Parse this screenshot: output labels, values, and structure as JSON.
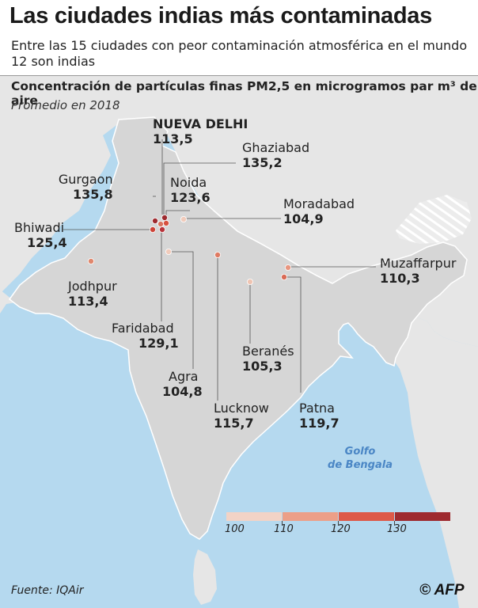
{
  "header": {
    "title": "Las ciudades indias más contaminadas",
    "subtitle": "Entre las 15 ciudades con peor contaminación atmosférica en el mundo 12 son indias"
  },
  "map": {
    "title": "Concentración de partículas finas PM2,5 en microgramos par m³ de aire",
    "subtitle": "Promedio en 2018",
    "gulf_line1": "Golfo",
    "gulf_line2": "de Bengala"
  },
  "cities": [
    {
      "name": "NUEVA DELHI",
      "value": "113,5",
      "color": "#d8735f"
    },
    {
      "name": "Ghaziabad",
      "value": "135,2",
      "color": "#9e2a2f"
    },
    {
      "name": "Gurgaon",
      "value": "135,8",
      "color": "#9e2a2f"
    },
    {
      "name": "Noida",
      "value": "123,6",
      "color": "#d7503e"
    },
    {
      "name": "Moradabad",
      "value": "104,9",
      "color": "#f1cbbb"
    },
    {
      "name": "Bhiwadi",
      "value": "125,4",
      "color": "#cd4338"
    },
    {
      "name": "Jodhpur",
      "value": "113,4",
      "color": "#e0876d"
    },
    {
      "name": "Muzaffarpur",
      "value": "110,3",
      "color": "#e89680"
    },
    {
      "name": "Faridabad",
      "value": "129,1",
      "color": "#b8333a"
    },
    {
      "name": "Agra",
      "value": "104,8",
      "color": "#f1cbbb"
    },
    {
      "name": "Beranés",
      "value": "105,3",
      "color": "#efc4b2"
    },
    {
      "name": "Lucknow",
      "value": "115,7",
      "color": "#df7a62"
    },
    {
      "name": "Patna",
      "value": "119,7",
      "color": "#d96a55"
    }
  ],
  "legend": {
    "ticks": [
      "100",
      "110",
      "120",
      "130"
    ],
    "colors": [
      "#f2d3c6",
      "#ec9f88",
      "#dd5948",
      "#9e2a2f"
    ]
  },
  "footer": {
    "source": "Fuente: IQAir",
    "logo": "© AFP"
  }
}
